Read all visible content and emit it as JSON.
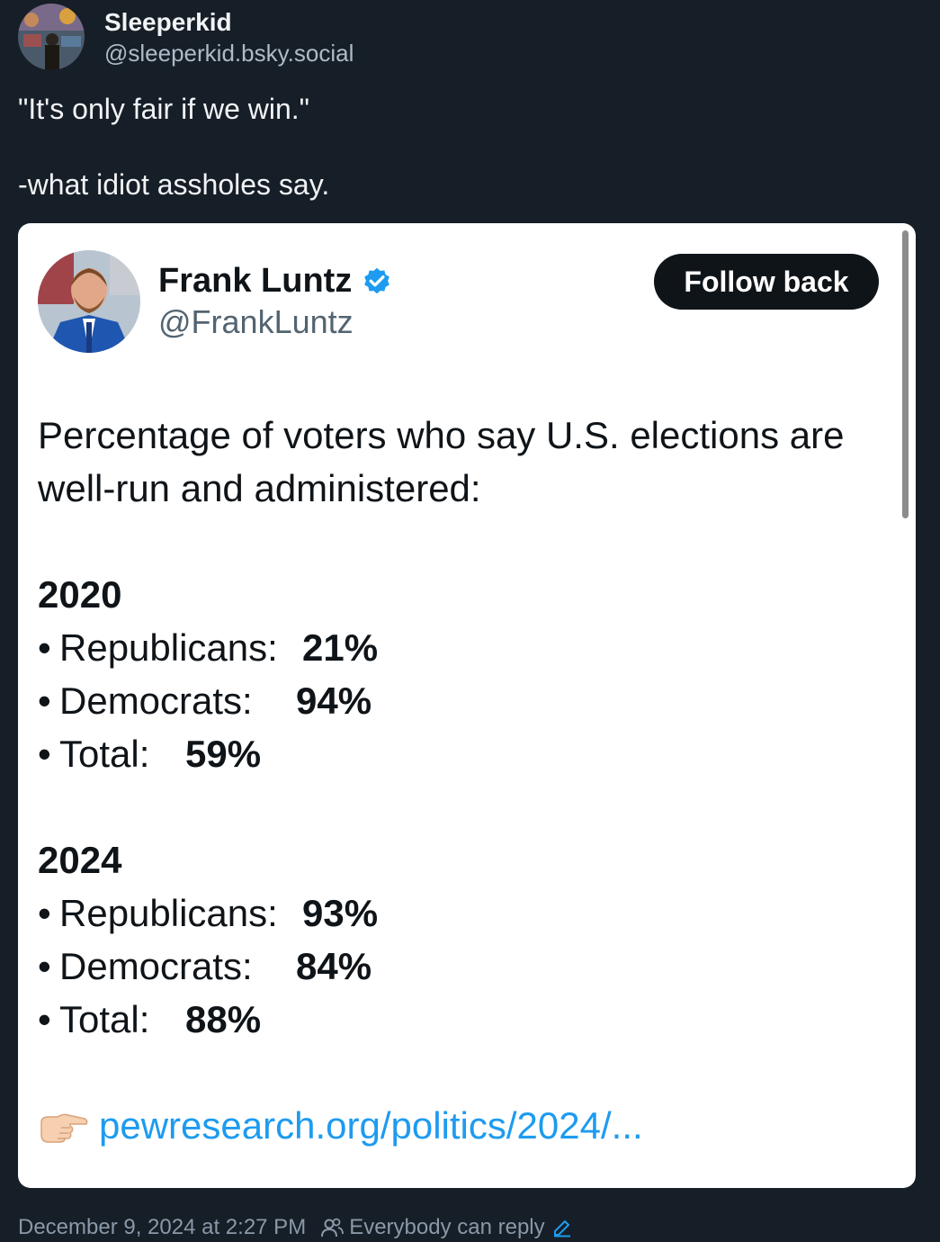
{
  "post": {
    "author": {
      "display_name": "Sleeperkid",
      "handle": "@sleeperkid.bsky.social"
    },
    "text_line1": "\"It's only fair if we win.\"",
    "text_line2": "-what idiot assholes say.",
    "timestamp": "December 9, 2024 at 2:27 PM",
    "reply_setting": "Everybody can reply"
  },
  "embed": {
    "author": {
      "name": "Frank Luntz",
      "handle": "@FrankLuntz",
      "verified_icon": "verified-badge-icon"
    },
    "follow_button": "Follow back",
    "intro_line1": "Percentage of voters who say U.S. elections are",
    "intro_line2": "well-run and administered:",
    "sections": [
      {
        "year": "2020",
        "rows": [
          {
            "bullet": "•",
            "label": "Republicans:",
            "value": "21%"
          },
          {
            "bullet": "•",
            "label": "Democrats:",
            "value": "94%"
          },
          {
            "bullet": "•",
            "label": "Total:",
            "value": "59%"
          }
        ]
      },
      {
        "year": "2024",
        "rows": [
          {
            "bullet": "•",
            "label": "Republicans:",
            "value": "93%"
          },
          {
            "bullet": "•",
            "label": "Democrats:",
            "value": "84%"
          },
          {
            "bullet": "•",
            "label": "Total:",
            "value": "88%"
          }
        ]
      }
    ],
    "link": {
      "icon": "pointing-hand-icon",
      "text": "pewresearch.org/politics/2024/..."
    }
  },
  "colors": {
    "background": "#161e27",
    "link_blue": "#1d9bf0",
    "verified_blue": "#1d9bf0"
  }
}
